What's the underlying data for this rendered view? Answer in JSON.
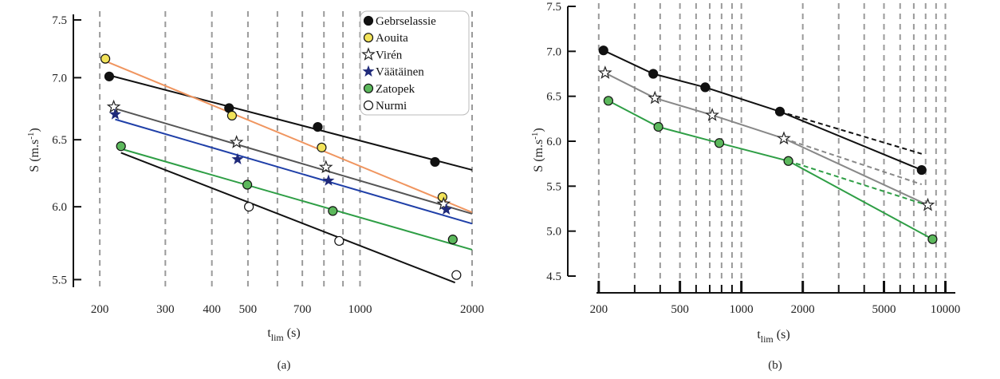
{
  "chart_data": [
    {
      "type": "scatter",
      "panel_label": "(a)",
      "x_scale": "log",
      "y_scale": "log",
      "xlim": [
        195,
        2000
      ],
      "ylim": [
        5.45,
        7.55
      ],
      "x_ticks": [
        200,
        300,
        400,
        500,
        700,
        1000,
        2000
      ],
      "x_tick_labels": [
        "200",
        "300",
        "400",
        "500",
        "700",
        "1000",
        "2000"
      ],
      "y_ticks": [
        5.5,
        6.0,
        6.5,
        7.0,
        7.5
      ],
      "y_tick_labels": [
        "5.5",
        "6.0",
        "6.5",
        "7.0",
        "7.5"
      ],
      "vgrid": [
        200,
        300,
        400,
        500,
        600,
        700,
        800,
        900,
        1000,
        2000
      ],
      "xlabel_main": "t",
      "xlabel_sub": "lim",
      "xlabel_unit": " (s)",
      "ylabel_main": "S (m.s",
      "ylabel_sup": "-1",
      "ylabel_end": ")",
      "legend_position": "top-right",
      "series": [
        {
          "name": "Gebrselassie",
          "marker": "circle",
          "fill": "#111111",
          "line_color": "#111111",
          "x": [
            212,
            445,
            770,
            1590
          ],
          "y": [
            7.01,
            6.75,
            6.6,
            6.33
          ],
          "fit": {
            "x": [
              212,
              2000
            ],
            "y": [
              7.02,
              6.27
            ]
          }
        },
        {
          "name": "Aouita",
          "marker": "circle",
          "fill": "#f2e35a",
          "line_color": "#f0955f",
          "x": [
            207,
            453,
            789,
            1665
          ],
          "y": [
            7.16,
            6.69,
            6.44,
            6.07
          ],
          "fit": {
            "x": [
              207,
              2000
            ],
            "y": [
              7.14,
              5.96
            ]
          }
        },
        {
          "name": "Virén",
          "marker": "star-open",
          "fill": "#ffffff",
          "line_color": "#555555",
          "x": [
            218,
            466,
            810,
            1677
          ],
          "y": [
            6.76,
            6.48,
            6.29,
            6.02
          ],
          "fit": {
            "x": [
              218,
              2000
            ],
            "y": [
              6.75,
              5.95
            ]
          }
        },
        {
          "name": "Väätäinen",
          "marker": "star-filled",
          "fill": "#1f2a7a",
          "line_color": "#1f3fa8",
          "x": [
            220,
            469,
            823,
            1705
          ],
          "y": [
            6.7,
            6.35,
            6.19,
            5.98
          ],
          "fit": {
            "x": [
              220,
              2000
            ],
            "y": [
              6.66,
              5.88
            ]
          }
        },
        {
          "name": "Zatopek",
          "marker": "circle",
          "fill": "#5cb85c",
          "line_color": "#2e9e45",
          "x": [
            228,
            498,
            845,
            1775
          ],
          "y": [
            6.45,
            6.16,
            5.97,
            5.77
          ],
          "fit": {
            "x": [
              228,
              2000
            ],
            "y": [
              6.43,
              5.7
            ]
          }
        },
        {
          "name": "Nurmi",
          "marker": "circle",
          "fill": "#ffffff",
          "line_color": "#111111",
          "x": [
            503,
            879,
            1815
          ],
          "y": [
            6.0,
            5.76,
            5.53
          ],
          "fit": {
            "x": [
              228,
              1800
            ],
            "y": [
              6.4,
              5.48
            ]
          }
        }
      ]
    },
    {
      "type": "scatter",
      "panel_label": "(b)",
      "x_scale": "log",
      "y_scale": "linear",
      "xlim": [
        195,
        10600
      ],
      "ylim": [
        4.5,
        7.5
      ],
      "x_ticks": [
        200,
        500,
        1000,
        2000,
        5000,
        10000
      ],
      "x_tick_labels": [
        "200",
        "500",
        "1000",
        "2000",
        "5000",
        "10000"
      ],
      "minor_x_ticks": [
        300,
        400,
        600,
        700,
        800,
        900,
        3000,
        4000,
        6000,
        7000,
        8000,
        9000
      ],
      "y_ticks": [
        4.5,
        5.0,
        5.5,
        6.0,
        6.5,
        7.0,
        7.5
      ],
      "y_tick_labels": [
        "4.5",
        "5.0",
        "5.5",
        "6.0",
        "6.5",
        "7.0",
        "7.5"
      ],
      "vgrid": [
        200,
        300,
        400,
        500,
        600,
        700,
        800,
        900,
        1000,
        2000,
        3000,
        4000,
        5000,
        6000,
        7000,
        8000,
        9000,
        10000
      ],
      "xlabel_main": "t",
      "xlabel_sub": "lim",
      "xlabel_unit": " (s)",
      "ylabel_main": "S (m.s",
      "ylabel_sup": "-1",
      "ylabel_end": ")",
      "series": [
        {
          "name": "Gebrselassie",
          "marker": "circle",
          "fill": "#111111",
          "line_color": "#111111",
          "x": [
            211,
            370,
            665,
            1545,
            7650
          ],
          "y": [
            7.01,
            6.75,
            6.6,
            6.33,
            5.68
          ],
          "dashed": {
            "x": [
              1545,
              7650
            ],
            "y": [
              6.33,
              5.86
            ]
          }
        },
        {
          "name": "Virén",
          "marker": "star-open",
          "fill": "#ffffff",
          "line_color": "#888888",
          "x": [
            215,
            377,
            720,
            1616,
            8200
          ],
          "y": [
            6.76,
            6.48,
            6.29,
            6.03,
            5.29
          ],
          "dashed": {
            "x": [
              1616,
              7650
            ],
            "y": [
              6.03,
              5.52
            ]
          }
        },
        {
          "name": "Zatopek",
          "marker": "circle",
          "fill": "#5cb85c",
          "line_color": "#2e9e45",
          "x": [
            223,
            392,
            780,
            1700,
            8650
          ],
          "y": [
            6.45,
            6.16,
            5.98,
            5.78,
            4.91
          ],
          "dashed": {
            "x": [
              1700,
              8650
            ],
            "y": [
              5.78,
              5.27
            ]
          }
        }
      ]
    }
  ]
}
